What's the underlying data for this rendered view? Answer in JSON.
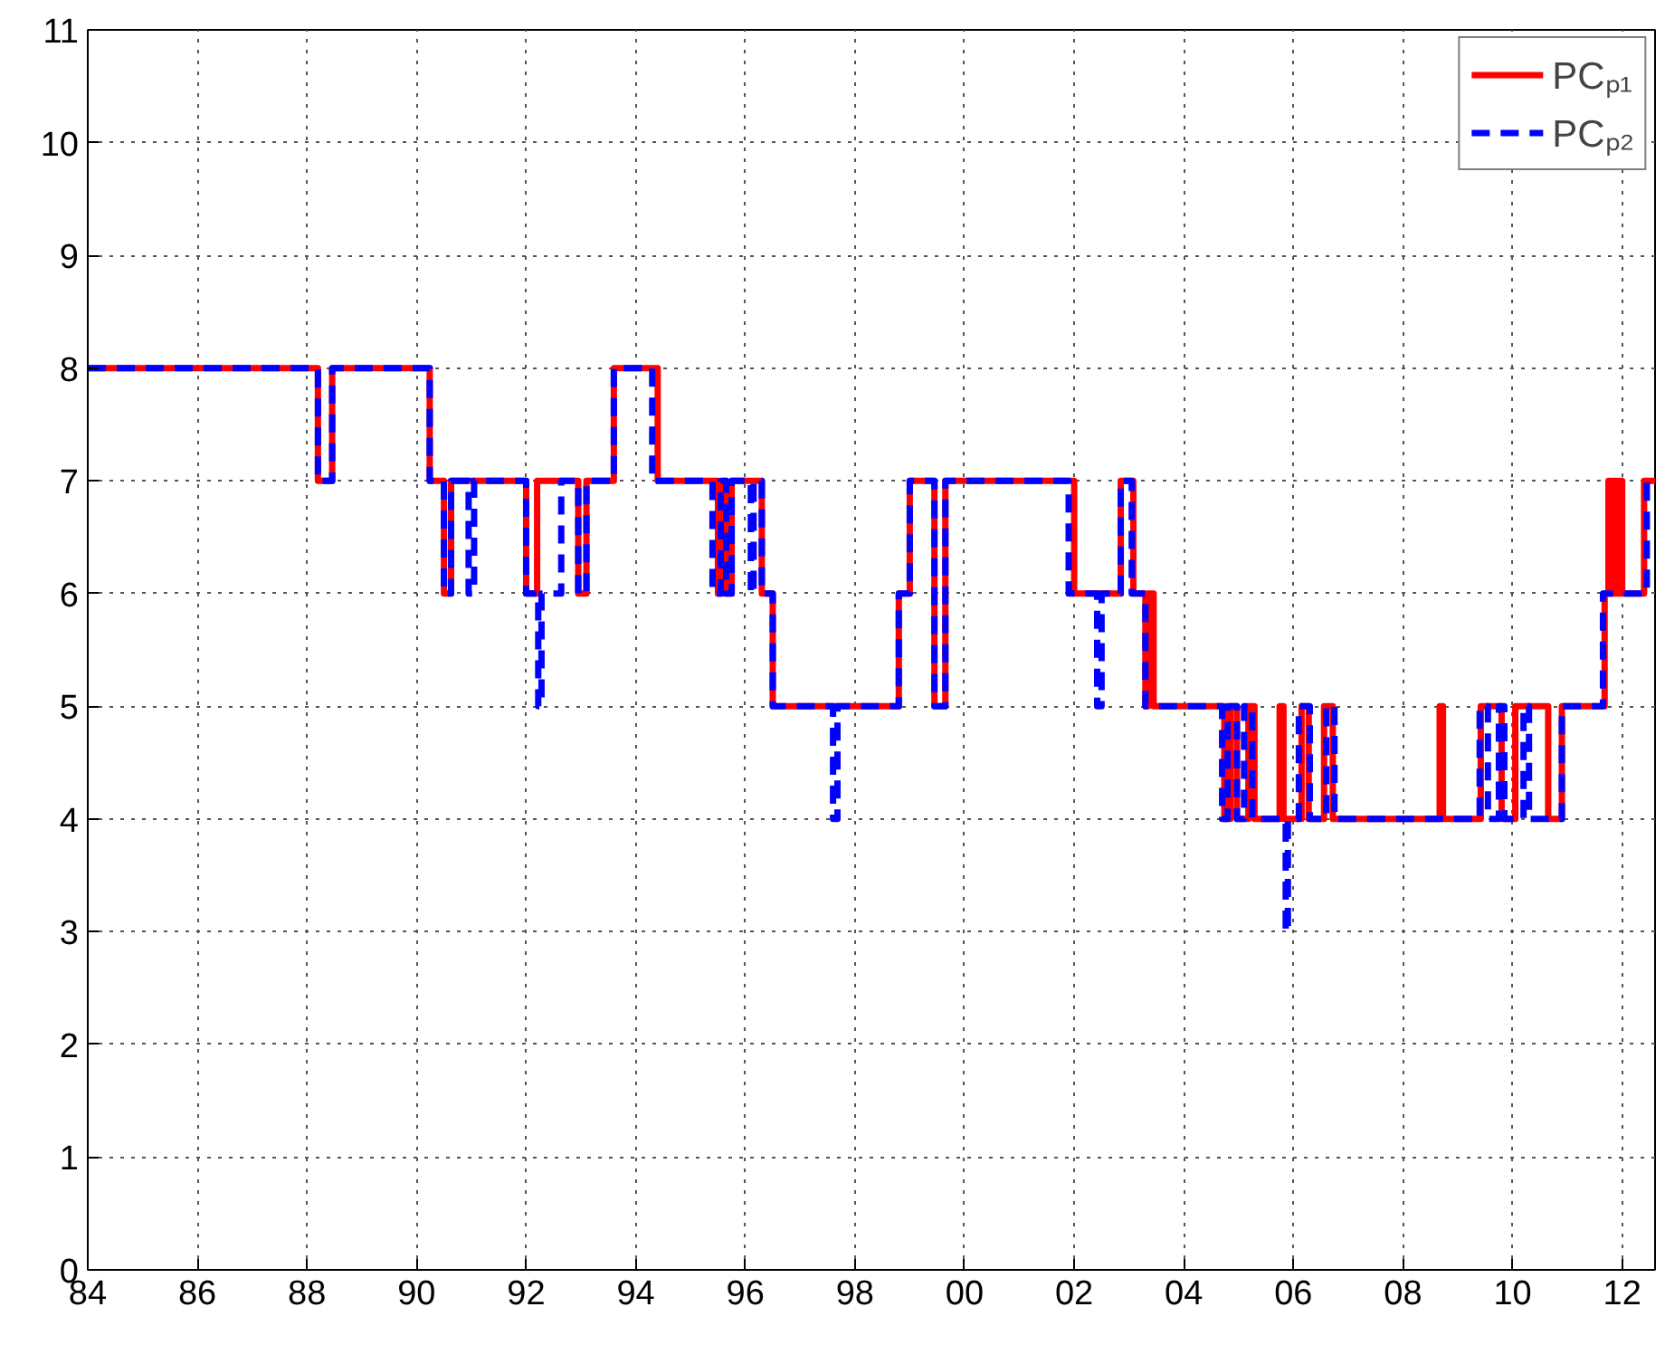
{
  "chart_data": {
    "type": "step",
    "xlim": [
      1984,
      2012.6
    ],
    "ylim": [
      0,
      11
    ],
    "xticks": [
      {
        "value": 1984,
        "label": "84"
      },
      {
        "value": 1986,
        "label": "86"
      },
      {
        "value": 1988,
        "label": "88"
      },
      {
        "value": 1990,
        "label": "90"
      },
      {
        "value": 1992,
        "label": "92"
      },
      {
        "value": 1994,
        "label": "94"
      },
      {
        "value": 1996,
        "label": "96"
      },
      {
        "value": 1998,
        "label": "98"
      },
      {
        "value": 2000,
        "label": "00"
      },
      {
        "value": 2002,
        "label": "02"
      },
      {
        "value": 2004,
        "label": "04"
      },
      {
        "value": 2006,
        "label": "06"
      },
      {
        "value": 2008,
        "label": "08"
      },
      {
        "value": 2010,
        "label": "10"
      },
      {
        "value": 2012,
        "label": "12"
      }
    ],
    "yticks": [
      0,
      1,
      2,
      3,
      4,
      5,
      6,
      7,
      8,
      9,
      10,
      11
    ],
    "grid": true,
    "legend": "top right",
    "series": [
      {
        "name": "PCₚ₁",
        "color": "#ff0000",
        "line_style": "solid",
        "x": [
          1984,
          1988.2,
          1988.46,
          1990.24,
          1990.5,
          1990.63,
          1992.0,
          1992.2,
          1992.95,
          1993.1,
          1993.6,
          1994.4,
          1995.5,
          1995.6,
          1995.65,
          1995.75,
          1996.3,
          1996.5,
          1998.8,
          1999.0,
          1999.45,
          1999.65,
          2002.0,
          2002.85,
          2003.08,
          2003.3,
          2003.35,
          2003.45,
          2004.74,
          2004.85,
          2004.97,
          2005.18,
          2005.29,
          2005.75,
          2005.82,
          2006.15,
          2006.28,
          2006.56,
          2006.72,
          2008.67,
          2008.73,
          2009.42,
          2009.8,
          2010.05,
          2010.65,
          2010.9,
          2011.68,
          2011.75,
          2011.8,
          2011.85,
          2011.9,
          2011.95,
          2012.0,
          2012.4,
          2012.6
        ],
        "values": [
          8,
          7,
          8,
          7,
          6,
          7,
          6,
          7,
          6,
          7,
          8,
          7,
          6,
          7,
          6,
          7,
          6,
          5,
          6,
          7,
          5,
          7,
          6,
          7,
          6,
          5,
          6,
          5,
          4,
          5,
          4,
          5,
          4,
          5,
          4,
          5,
          4,
          5,
          4,
          5,
          4,
          5,
          4,
          5,
          4,
          5,
          6,
          7,
          6,
          7,
          6,
          7,
          6,
          7,
          7
        ]
      },
      {
        "name": "PCₚ₂",
        "color": "#0000ff",
        "line_style": "dashed",
        "x": [
          1984,
          1988.2,
          1988.46,
          1990.24,
          1990.5,
          1990.63,
          1990.95,
          1991.05,
          1992.0,
          1992.22,
          1992.28,
          1992.64,
          1992.95,
          1993.1,
          1993.6,
          1994.3,
          1995.4,
          1995.55,
          1995.65,
          1995.75,
          1996.1,
          1996.15,
          1996.3,
          1996.5,
          1997.6,
          1997.68,
          1998.8,
          1999.0,
          1999.45,
          1999.65,
          2001.9,
          2002.42,
          2002.5,
          2002.85,
          2003.05,
          2003.3,
          2004.7,
          2004.8,
          2004.97,
          2005.1,
          2005.25,
          2005.86,
          2005.9,
          2006.1,
          2006.3,
          2006.6,
          2006.75,
          2009.4,
          2009.55,
          2009.75,
          2009.85,
          2010.2,
          2010.3,
          2010.9,
          2011.65,
          2012.45,
          2012.6
        ],
        "values": [
          8,
          7,
          8,
          7,
          6,
          7,
          6,
          7,
          6,
          5,
          6,
          7,
          6,
          7,
          8,
          7,
          6,
          7,
          6,
          7,
          6,
          7,
          6,
          5,
          4,
          5,
          6,
          7,
          5,
          7,
          6,
          5,
          6,
          7,
          6,
          5,
          4,
          5,
          4,
          5,
          4,
          3,
          4,
          5,
          4,
          5,
          4,
          5,
          4,
          5,
          4,
          5,
          4,
          5,
          6,
          7,
          7
        ]
      }
    ]
  }
}
